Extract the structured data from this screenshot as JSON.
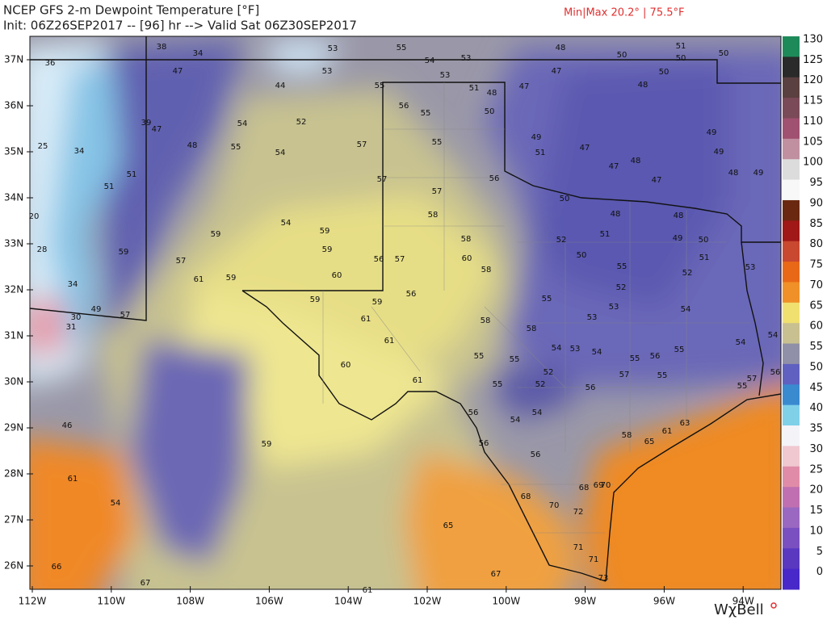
{
  "header": {
    "title": "NCEP GFS 2-m Dewpoint Temperature [°F]",
    "subtitle": "Init: 06Z26SEP2017 -- [96] hr --> Valid Sat 06Z30SEP2017",
    "minmax": "Min|Max 20.2° | 75.5°F"
  },
  "map": {
    "lat_labels": [
      "37N",
      "36N",
      "35N",
      "34N",
      "33N",
      "32N",
      "31N",
      "30N",
      "29N",
      "28N",
      "27N",
      "26N"
    ],
    "lon_labels": [
      "112W",
      "110W",
      "108W",
      "106W",
      "104W",
      "102W",
      "100W",
      "98W",
      "96W",
      "94W"
    ],
    "station_values": [
      38,
      34,
      36,
      47,
      44,
      53,
      53,
      55,
      54,
      53,
      53,
      55,
      48,
      51,
      50,
      50,
      50,
      47,
      48,
      50,
      56,
      55,
      51,
      50,
      47,
      48,
      39,
      47,
      25,
      34,
      48,
      54,
      52,
      55,
      54,
      57,
      55,
      51,
      51,
      57,
      57,
      58,
      56,
      49,
      51,
      47,
      48,
      47,
      47,
      48,
      49,
      49,
      49,
      50,
      48,
      20,
      28,
      59,
      54,
      59,
      59,
      60,
      56,
      57,
      58,
      60,
      58,
      52,
      51,
      50,
      48,
      49,
      50,
      51,
      52,
      53,
      55,
      52,
      57,
      61,
      59,
      59,
      59,
      59,
      56,
      55,
      53,
      53,
      54,
      54,
      58,
      58,
      61,
      61,
      60,
      61,
      55,
      55,
      54,
      53,
      54,
      55,
      56,
      55,
      55,
      57,
      52,
      52,
      55,
      56,
      54,
      54,
      56,
      56,
      56,
      58,
      61,
      63,
      65,
      49,
      57,
      30,
      31,
      34,
      46,
      59,
      61,
      54,
      68,
      70,
      72,
      68,
      69,
      70,
      65,
      71,
      71,
      73,
      67,
      61,
      66,
      67,
      55,
      57,
      56,
      54
    ]
  },
  "colorbar": {
    "ticks": [
      130,
      125,
      120,
      115,
      110,
      105,
      100,
      95,
      90,
      85,
      80,
      75,
      70,
      65,
      60,
      55,
      50,
      45,
      40,
      35,
      30,
      25,
      20,
      15,
      10,
      5,
      0
    ]
  },
  "logo": "WχBell"
}
